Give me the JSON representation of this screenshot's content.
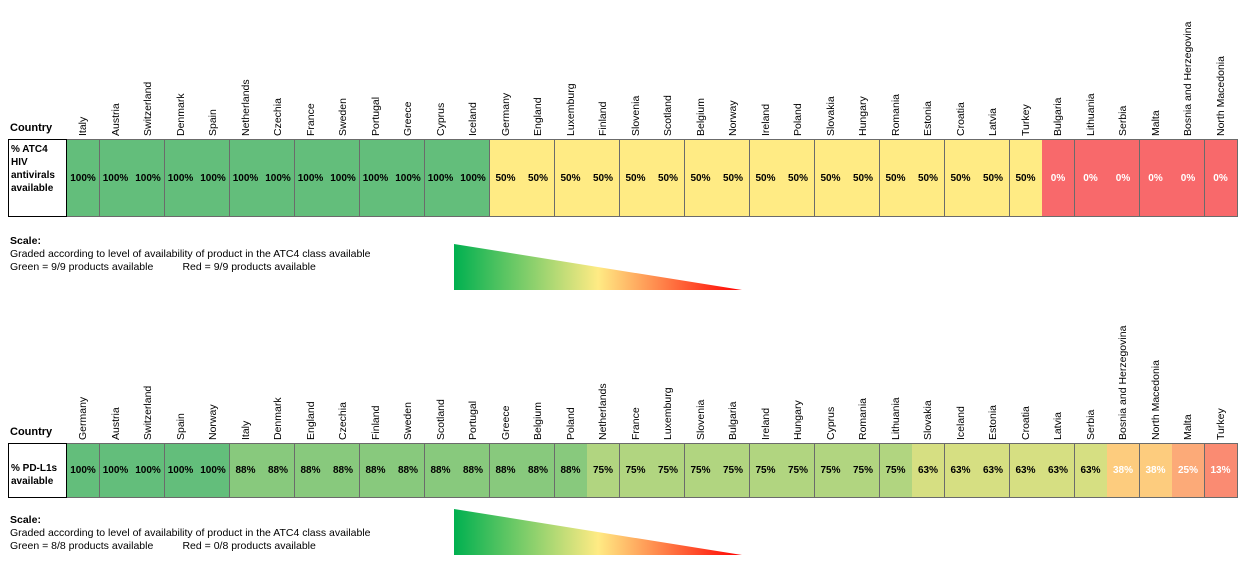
{
  "chart_data": [
    {
      "type": "table",
      "header_label": "Country",
      "row_label": [
        "% ATC4",
        "HIV",
        "antivirals",
        "available"
      ],
      "categories": [
        "Italy",
        "Austria",
        "Switzerland",
        "Denmark",
        "Spain",
        "Netherlands",
        "Czechia",
        "France",
        "Sweden",
        "Portugal",
        "Greece",
        "Cyprus",
        "Iceland",
        "Germany",
        "England",
        "Luxemburg",
        "Finland",
        "Slovenia",
        "Scotland",
        "Belgium",
        "Norway",
        "Ireland",
        "Poland",
        "Slovakia",
        "Hungary",
        "Romania",
        "Estonia",
        "Croatia",
        "Latvia",
        "Turkey",
        "Bulgaria",
        "Lithuania",
        "Serbia",
        "Malta",
        "Bosnia and Herzegovina",
        "North Macedonia"
      ],
      "values": [
        100,
        100,
        100,
        100,
        100,
        100,
        100,
        100,
        100,
        100,
        100,
        100,
        100,
        50,
        50,
        50,
        50,
        50,
        50,
        50,
        50,
        50,
        50,
        50,
        50,
        50,
        50,
        50,
        50,
        50,
        0,
        0,
        0,
        0,
        0,
        0
      ],
      "labels": [
        "100%",
        "100%",
        "100%",
        "100%",
        "100%",
        "100%",
        "100%",
        "100%",
        "100%",
        "100%",
        "100%",
        "100%",
        "100%",
        "50%",
        "50%",
        "50%",
        "50%",
        "50%",
        "50%",
        "50%",
        "50%",
        "50%",
        "50%",
        "50%",
        "50%",
        "50%",
        "50%",
        "50%",
        "50%",
        "50%",
        "0%",
        "0%",
        "0%",
        "0%",
        "0%",
        "0%"
      ],
      "scale": {
        "title": "Scale:",
        "line1": "Graded according to level of availability of product in the ATC4 class available",
        "line2": "Green = 9/9 products available          Red = 9/9 products available"
      },
      "colors": {
        "high": "#63be7b",
        "mid": "#ffeb84",
        "low": "#f8696b"
      }
    },
    {
      "type": "table",
      "header_label": "Country",
      "row_label": [
        "% PD-L1s",
        "available"
      ],
      "categories": [
        "Germany",
        "Austria",
        "Switzerland",
        "Spain",
        "Norway",
        "Italy",
        "Denmark",
        "England",
        "Czechia",
        "Finland",
        "Sweden",
        "Scotland",
        "Portugal",
        "Greece",
        "Belgium",
        "Poland",
        "Netherlands",
        "France",
        "Luxemburg",
        "Slovenia",
        "Bulgaria",
        "Ireland",
        "Hungary",
        "Cyprus",
        "Romania",
        "Lithuania",
        "Slovakia",
        "Iceland",
        "Estonia",
        "Croatia",
        "Latvia",
        "Serbia",
        "Bosnia and Herzegovina",
        "North Macedonia",
        "Malta",
        "Turkey"
      ],
      "values": [
        100,
        100,
        100,
        100,
        100,
        88,
        88,
        88,
        88,
        88,
        88,
        88,
        88,
        88,
        88,
        88,
        75,
        75,
        75,
        75,
        75,
        75,
        75,
        75,
        75,
        75,
        63,
        63,
        63,
        63,
        63,
        63,
        38,
        38,
        25,
        13
      ],
      "labels": [
        "100%",
        "100%",
        "100%",
        "100%",
        "100%",
        "88%",
        "88%",
        "88%",
        "88%",
        "88%",
        "88%",
        "88%",
        "88%",
        "88%",
        "88%",
        "88%",
        "75%",
        "75%",
        "75%",
        "75%",
        "75%",
        "75%",
        "75%",
        "75%",
        "75%",
        "75%",
        "63%",
        "63%",
        "63%",
        "63%",
        "63%",
        "63%",
        "38%",
        "38%",
        "25%",
        "13%"
      ],
      "scale": {
        "title": "Scale:",
        "line1": "Graded according to level of availability of product in the ATC4 class available",
        "line2": "Green = 8/8 products available          Red = 0/8 products available"
      },
      "colors": {
        "high": "#63be7b",
        "mid": "#ffeb84",
        "low": "#f8696b"
      }
    }
  ]
}
